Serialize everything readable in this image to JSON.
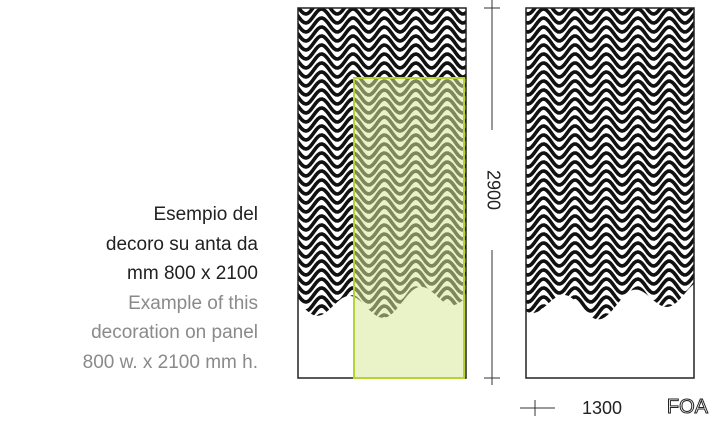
{
  "caption": {
    "italian": [
      "Esempio del",
      "decoro su anta da",
      "mm 800 x 2100"
    ],
    "english": [
      "Example of this",
      "decoration on panel",
      "800 w. x 2100 mm h."
    ]
  },
  "dimensions": {
    "height": "2900",
    "width": "1300"
  },
  "logo": "FOA"
}
